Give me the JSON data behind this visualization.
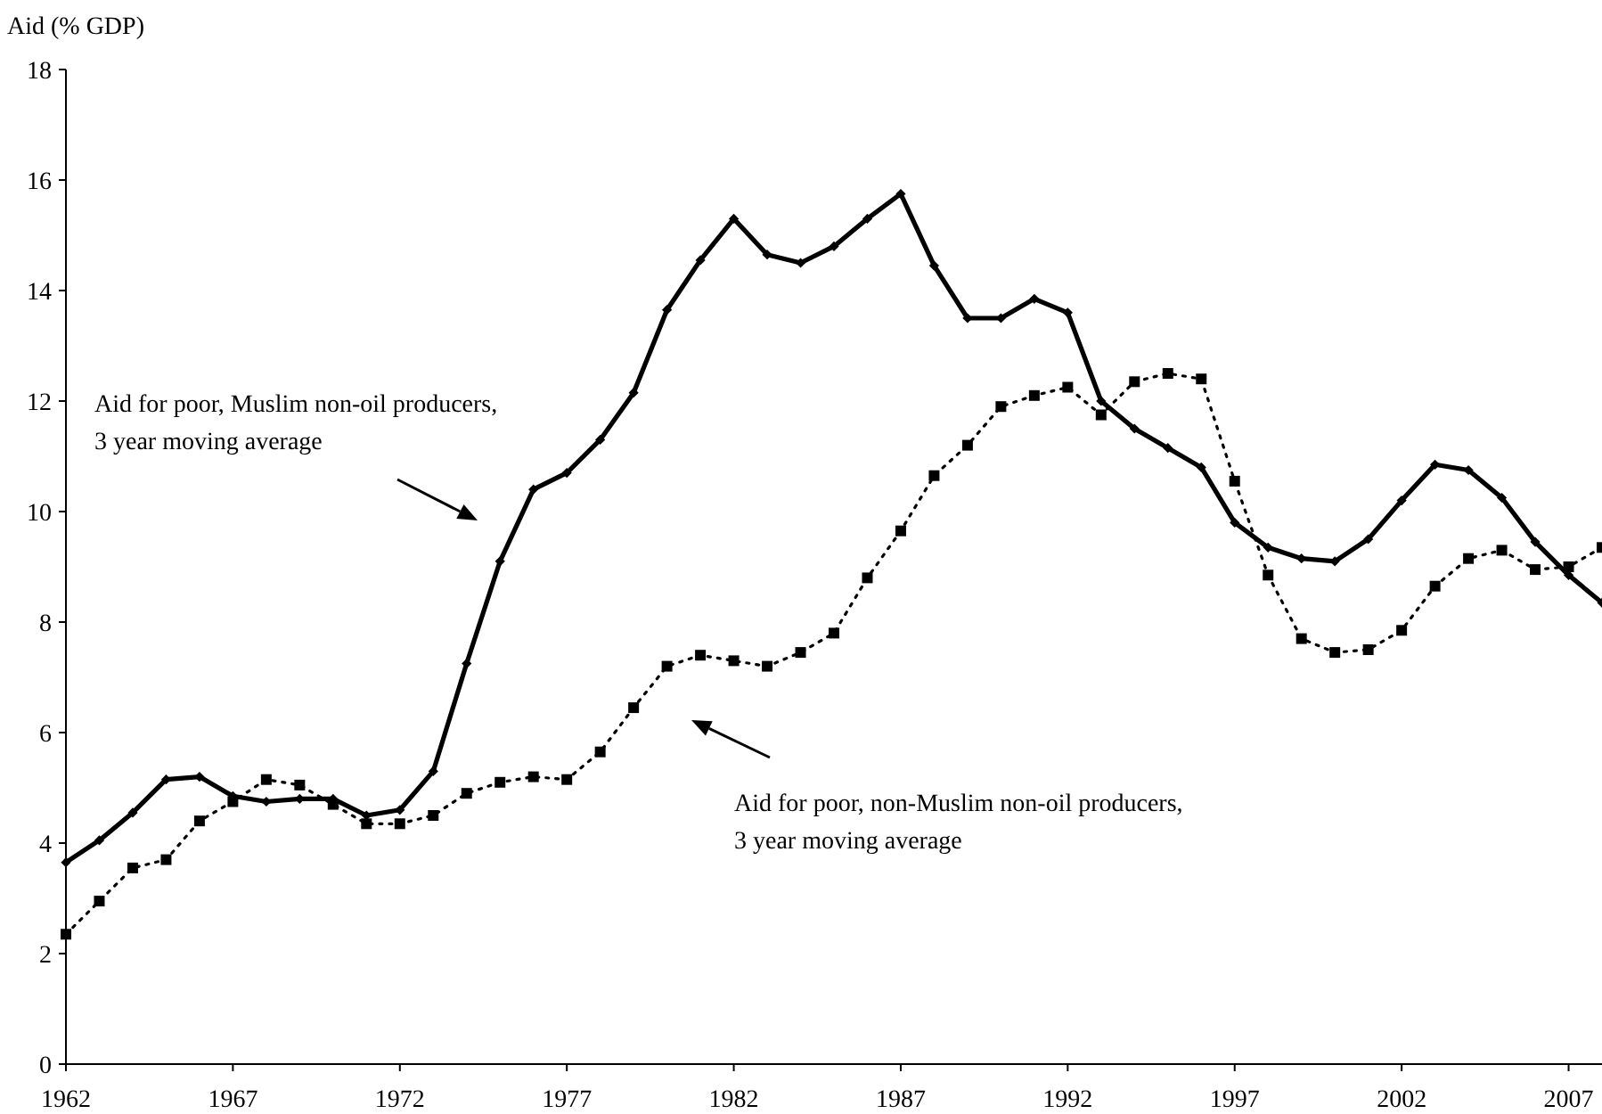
{
  "chart_data": {
    "type": "line",
    "ylabel": "Aid (% GDP)",
    "x": [
      1962,
      1963,
      1964,
      1965,
      1966,
      1967,
      1968,
      1969,
      1970,
      1971,
      1972,
      1973,
      1974,
      1975,
      1976,
      1977,
      1978,
      1979,
      1980,
      1981,
      1982,
      1983,
      1984,
      1985,
      1986,
      1987,
      1988,
      1989,
      1990,
      1991,
      1992,
      1993,
      1994,
      1995,
      1996,
      1997,
      1998,
      1999,
      2000,
      2001,
      2002,
      2003,
      2004,
      2005,
      2006,
      2007,
      2008
    ],
    "xlim": [
      1962,
      2008
    ],
    "xticks": [
      1962,
      1967,
      1972,
      1977,
      1982,
      1987,
      1992,
      1997,
      2002,
      2007
    ],
    "ylim": [
      0,
      18
    ],
    "yticks": [
      0,
      2,
      4,
      6,
      8,
      10,
      12,
      14,
      16,
      18
    ],
    "grid": false,
    "annotations": [
      "Aid for poor, Muslim non-oil producers, 3 year moving average",
      "Aid for poor, non-Muslim non-oil producers, 3 year moving average"
    ],
    "series": [
      {
        "color": "#000000",
        "marker": "diamond",
        "line_style": "solid",
        "values": [
          3.65,
          4.05,
          4.55,
          5.15,
          5.2,
          4.85,
          4.75,
          4.8,
          4.8,
          4.5,
          4.6,
          5.3,
          7.25,
          9.1,
          10.4,
          10.7,
          11.3,
          12.15,
          13.65,
          14.55,
          15.3,
          14.65,
          14.5,
          14.8,
          15.3,
          15.75,
          14.45,
          13.5,
          13.5,
          13.85,
          13.6,
          12.0,
          11.5,
          11.15,
          10.8,
          9.8,
          9.35,
          9.15,
          9.1,
          9.5,
          10.2,
          10.85,
          10.75,
          10.25,
          9.45,
          8.85,
          8.35
        ]
      },
      {
        "color": "#000000",
        "marker": "square",
        "line_style": "dotted",
        "values": [
          2.35,
          2.95,
          3.55,
          3.7,
          4.4,
          4.75,
          5.15,
          5.05,
          4.7,
          4.35,
          4.35,
          4.5,
          4.9,
          5.1,
          5.2,
          5.15,
          5.65,
          6.45,
          7.2,
          7.4,
          7.3,
          7.2,
          7.45,
          7.8,
          8.8,
          9.65,
          10.65,
          11.2,
          11.9,
          12.1,
          12.25,
          11.75,
          12.35,
          12.5,
          12.4,
          10.55,
          8.85,
          7.7,
          7.45,
          7.5,
          7.85,
          8.65,
          9.15,
          9.3,
          8.95,
          9.0,
          9.35
        ]
      }
    ]
  }
}
